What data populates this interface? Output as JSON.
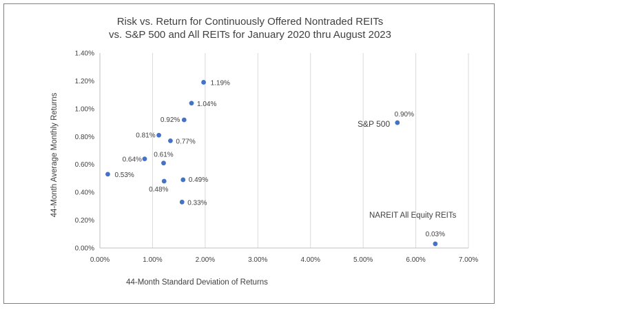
{
  "chart_data": {
    "type": "scatter",
    "title_lines": [
      "Risk vs. Return for Continuously Offered Nontraded REITs",
      "vs. S&P 500 and All REITs for January 2020 thru August 2023"
    ],
    "xlabel": "44-Month Standard Deviation of Returns",
    "ylabel": "44-Month Average Monthly Returns",
    "xlim": [
      0,
      7
    ],
    "ylim": [
      0,
      1.4
    ],
    "x_ticks": [
      "0.00%",
      "1.00%",
      "2.00%",
      "3.00%",
      "4.00%",
      "5.00%",
      "6.00%",
      "7.00%"
    ],
    "y_ticks": [
      "0.00%",
      "0.20%",
      "0.40%",
      "0.60%",
      "0.80%",
      "1.00%",
      "1.20%",
      "1.40%"
    ],
    "grid": "vertical",
    "marker_color": "#4472c4",
    "points": [
      {
        "x": 1.97,
        "y": 1.19,
        "label": "1.19%"
      },
      {
        "x": 1.74,
        "y": 1.04,
        "label": "1.04%"
      },
      {
        "x": 1.6,
        "y": 0.92,
        "label": "0.92%"
      },
      {
        "x": 1.12,
        "y": 0.81,
        "label": "0.81%"
      },
      {
        "x": 1.34,
        "y": 0.77,
        "label": "0.77%"
      },
      {
        "x": 0.85,
        "y": 0.64,
        "label": "0.64%"
      },
      {
        "x": 1.21,
        "y": 0.61,
        "label": "0.61%"
      },
      {
        "x": 0.15,
        "y": 0.53,
        "label": "0.53%"
      },
      {
        "x": 1.58,
        "y": 0.49,
        "label": "0.49%"
      },
      {
        "x": 1.22,
        "y": 0.48,
        "label": "0.48%"
      },
      {
        "x": 1.56,
        "y": 0.33,
        "label": "0.33%"
      },
      {
        "x": 5.65,
        "y": 0.9,
        "label": "0.90%"
      },
      {
        "x": 6.37,
        "y": 0.03,
        "label": "0.03%"
      }
    ],
    "annotations": [
      "S&P 500",
      "NAREIT All Equity REITs"
    ]
  }
}
